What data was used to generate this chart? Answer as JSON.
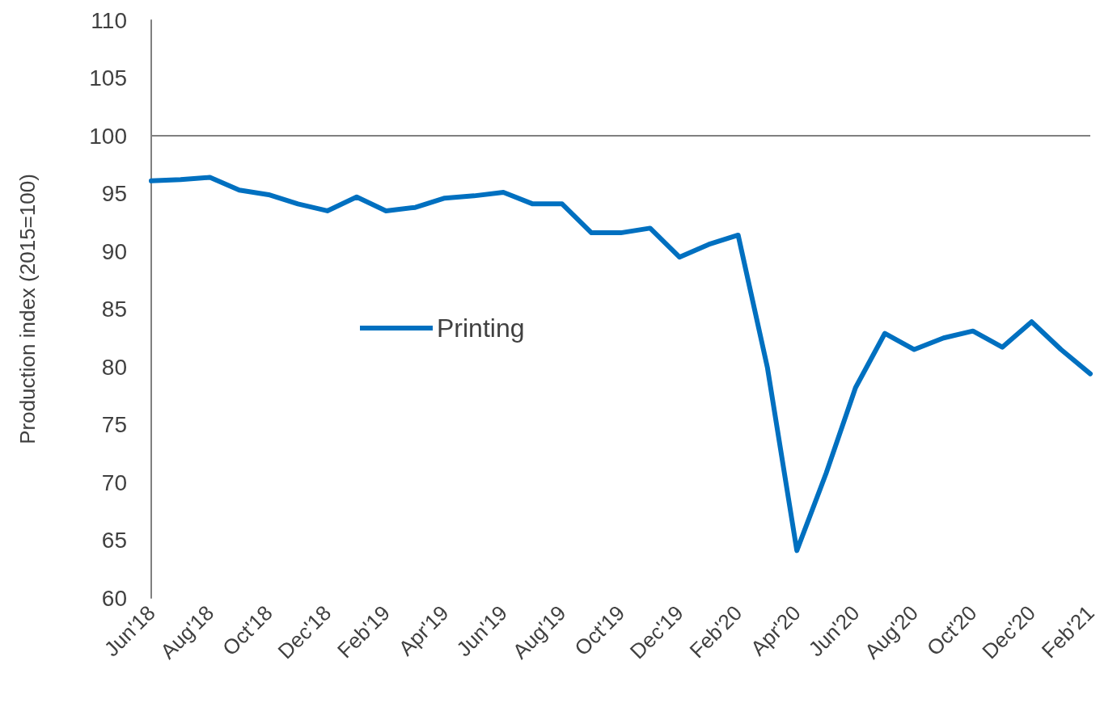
{
  "chart_data": {
    "type": "line",
    "ylabel": "Production index (2015=100)",
    "categories": [
      "Jun'18",
      null,
      "Aug'18",
      null,
      "Oct'18",
      null,
      "Dec'18",
      null,
      "Feb'19",
      null,
      "Apr'19",
      null,
      "Jun'19",
      null,
      "Aug'19",
      null,
      "Oct'19",
      null,
      "Dec'19",
      null,
      "Feb'20",
      null,
      "Apr'20",
      null,
      "Jun'20",
      null,
      "Aug'20",
      null,
      "Oct'20",
      null,
      "Dec'20",
      null,
      "Feb'21"
    ],
    "series": [
      {
        "name": "Printing",
        "color": "#0070c0",
        "values": [
          96.1,
          96.2,
          96.4,
          95.3,
          94.9,
          94.1,
          93.5,
          94.7,
          93.5,
          93.8,
          94.6,
          94.8,
          95.1,
          94.1,
          94.1,
          91.6,
          91.6,
          92.0,
          89.5,
          90.6,
          91.4,
          79.9,
          64.1,
          70.8,
          78.2,
          82.9,
          81.5,
          82.5,
          83.1,
          81.7,
          83.9,
          81.5,
          79.4
        ]
      }
    ],
    "ylim": [
      60,
      110
    ],
    "yticks": [
      60,
      65,
      70,
      75,
      80,
      85,
      90,
      95,
      100,
      105,
      110
    ],
    "ref_lines": [
      {
        "axis": "y",
        "value": 100,
        "color": "#808080"
      }
    ],
    "grid": false,
    "legend": "center",
    "marker": "none",
    "line_style": "solid"
  }
}
